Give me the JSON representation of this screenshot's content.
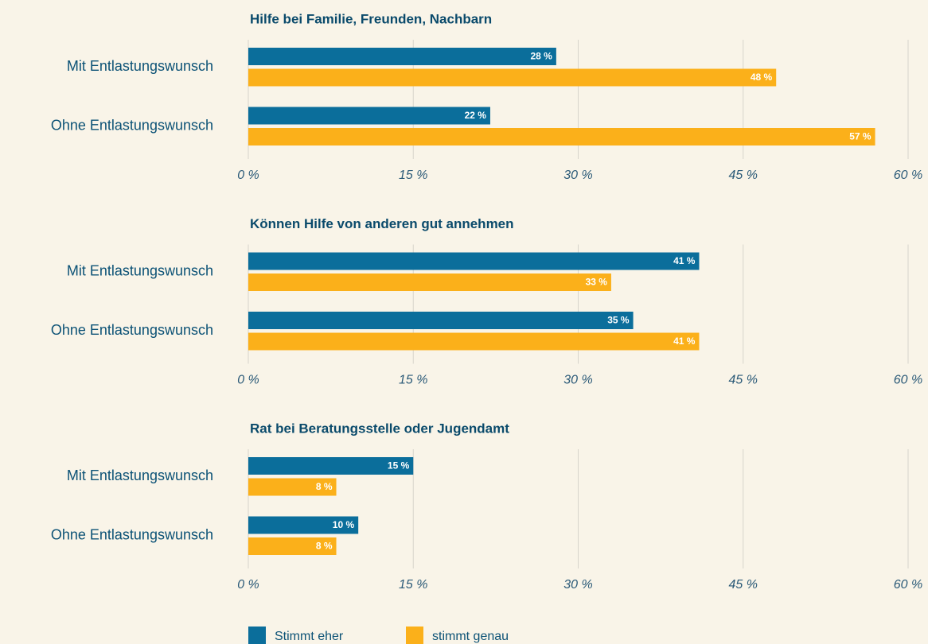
{
  "chart_data": [
    {
      "type": "barh",
      "title": "Hilfe bei Familie,  Freunden, Nachbarn",
      "categories": [
        "Mit Entlastungswunsch",
        "Ohne Entlastungswunsch"
      ],
      "series": [
        {
          "color": "#0b6e9b",
          "values": [
            28,
            22
          ],
          "value_labels": [
            "28 %",
            "22 %"
          ]
        },
        {
          "color": "#fbb01a",
          "values": [
            48,
            57
          ],
          "value_labels": [
            "48 %",
            "57 %"
          ]
        }
      ],
      "xlim": [
        0,
        60
      ],
      "xticks": [
        {
          "value": 0,
          "label": "0 %"
        },
        {
          "value": 15,
          "label": "15 %"
        },
        {
          "value": 30,
          "label": "30 %"
        },
        {
          "value": 45,
          "label": "45 %"
        },
        {
          "value": 60,
          "label": "60 %"
        }
      ],
      "grid": true
    },
    {
      "type": "barh",
      "title": "Können Hilfe von anderen gut annehmen",
      "categories": [
        "Mit Entlastungswunsch",
        "Ohne Entlastungswunsch"
      ],
      "series": [
        {
          "color": "#0b6e9b",
          "values": [
            41,
            35
          ],
          "value_labels": [
            "41 %",
            "35 %"
          ]
        },
        {
          "color": "#fbb01a",
          "values": [
            33,
            41
          ],
          "value_labels": [
            "33 %",
            "41 %"
          ]
        }
      ],
      "xlim": [
        0,
        60
      ],
      "xticks": [
        {
          "value": 0,
          "label": "0 %"
        },
        {
          "value": 15,
          "label": "15 %"
        },
        {
          "value": 30,
          "label": "30 %"
        },
        {
          "value": 45,
          "label": "45 %"
        },
        {
          "value": 60,
          "label": "60 %"
        }
      ],
      "grid": true
    },
    {
      "type": "barh",
      "title": "Rat bei Beratungsstelle oder Jugendamt",
      "categories": [
        "Mit Entlastungswunsch",
        "Ohne Entlastungswunsch"
      ],
      "series": [
        {
          "color": "#0b6e9b",
          "values": [
            15,
            10
          ],
          "value_labels": [
            "15 %",
            "10 %"
          ]
        },
        {
          "color": "#fbb01a",
          "values": [
            8,
            8
          ],
          "value_labels": [
            "8 %",
            "8 %"
          ]
        }
      ],
      "xlim": [
        0,
        60
      ],
      "xticks": [
        {
          "value": 0,
          "label": "0 %"
        },
        {
          "value": 15,
          "label": "15 %"
        },
        {
          "value": 30,
          "label": "30 %"
        },
        {
          "value": 45,
          "label": "45 %"
        },
        {
          "value": 60,
          "label": "60 %"
        }
      ],
      "grid": true
    }
  ],
  "legend": {
    "entries": [
      {
        "name": "Stimmt eher",
        "color": "#0b6e9b"
      },
      {
        "name": "stimmt genau",
        "color": "#fbb01a"
      }
    ]
  }
}
